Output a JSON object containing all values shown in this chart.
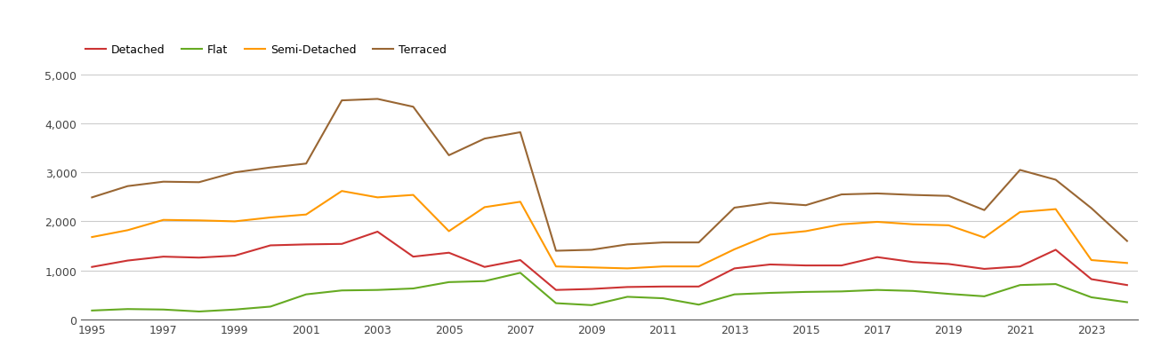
{
  "years": [
    1995,
    1996,
    1997,
    1998,
    1999,
    2000,
    2001,
    2002,
    2003,
    2004,
    2005,
    2006,
    2007,
    2008,
    2009,
    2010,
    2011,
    2012,
    2013,
    2014,
    2015,
    2016,
    2017,
    2018,
    2019,
    2020,
    2021,
    2022,
    2023,
    2024
  ],
  "detached": [
    1070,
    1200,
    1280,
    1260,
    1300,
    1510,
    1530,
    1540,
    1790,
    1280,
    1360,
    1070,
    1210,
    600,
    620,
    660,
    670,
    670,
    1040,
    1120,
    1100,
    1100,
    1270,
    1170,
    1130,
    1030,
    1080,
    1420,
    820,
    700
  ],
  "flat": [
    180,
    210,
    200,
    160,
    200,
    260,
    510,
    590,
    600,
    630,
    760,
    780,
    950,
    330,
    290,
    460,
    430,
    300,
    510,
    540,
    560,
    570,
    600,
    580,
    520,
    470,
    700,
    720,
    450,
    350
  ],
  "semi_detached": [
    1680,
    1820,
    2030,
    2020,
    2000,
    2080,
    2140,
    2620,
    2490,
    2540,
    1800,
    2290,
    2400,
    1080,
    1060,
    1040,
    1080,
    1080,
    1430,
    1730,
    1800,
    1940,
    1990,
    1940,
    1920,
    1670,
    2190,
    2250,
    1210,
    1150
  ],
  "terraced": [
    2490,
    2720,
    2810,
    2800,
    3000,
    3100,
    3180,
    4470,
    4500,
    4340,
    3350,
    3690,
    3820,
    1400,
    1420,
    1530,
    1570,
    1570,
    2280,
    2380,
    2330,
    2550,
    2570,
    2540,
    2520,
    2230,
    3050,
    2850,
    2270,
    1600
  ],
  "colors": {
    "detached": "#cc3333",
    "flat": "#66aa22",
    "semi_detached": "#ff9900",
    "terraced": "#996633"
  },
  "legend_labels": [
    "Detached",
    "Flat",
    "Semi-Detached",
    "Terraced"
  ],
  "ylim": [
    0,
    5200
  ],
  "yticks": [
    0,
    1000,
    2000,
    3000,
    4000,
    5000
  ],
  "ytick_labels": [
    "0",
    "1,000",
    "2,000",
    "3,000",
    "4,000",
    "5,000"
  ],
  "background_color": "#ffffff",
  "grid_color": "#cccccc",
  "linewidth": 1.5
}
